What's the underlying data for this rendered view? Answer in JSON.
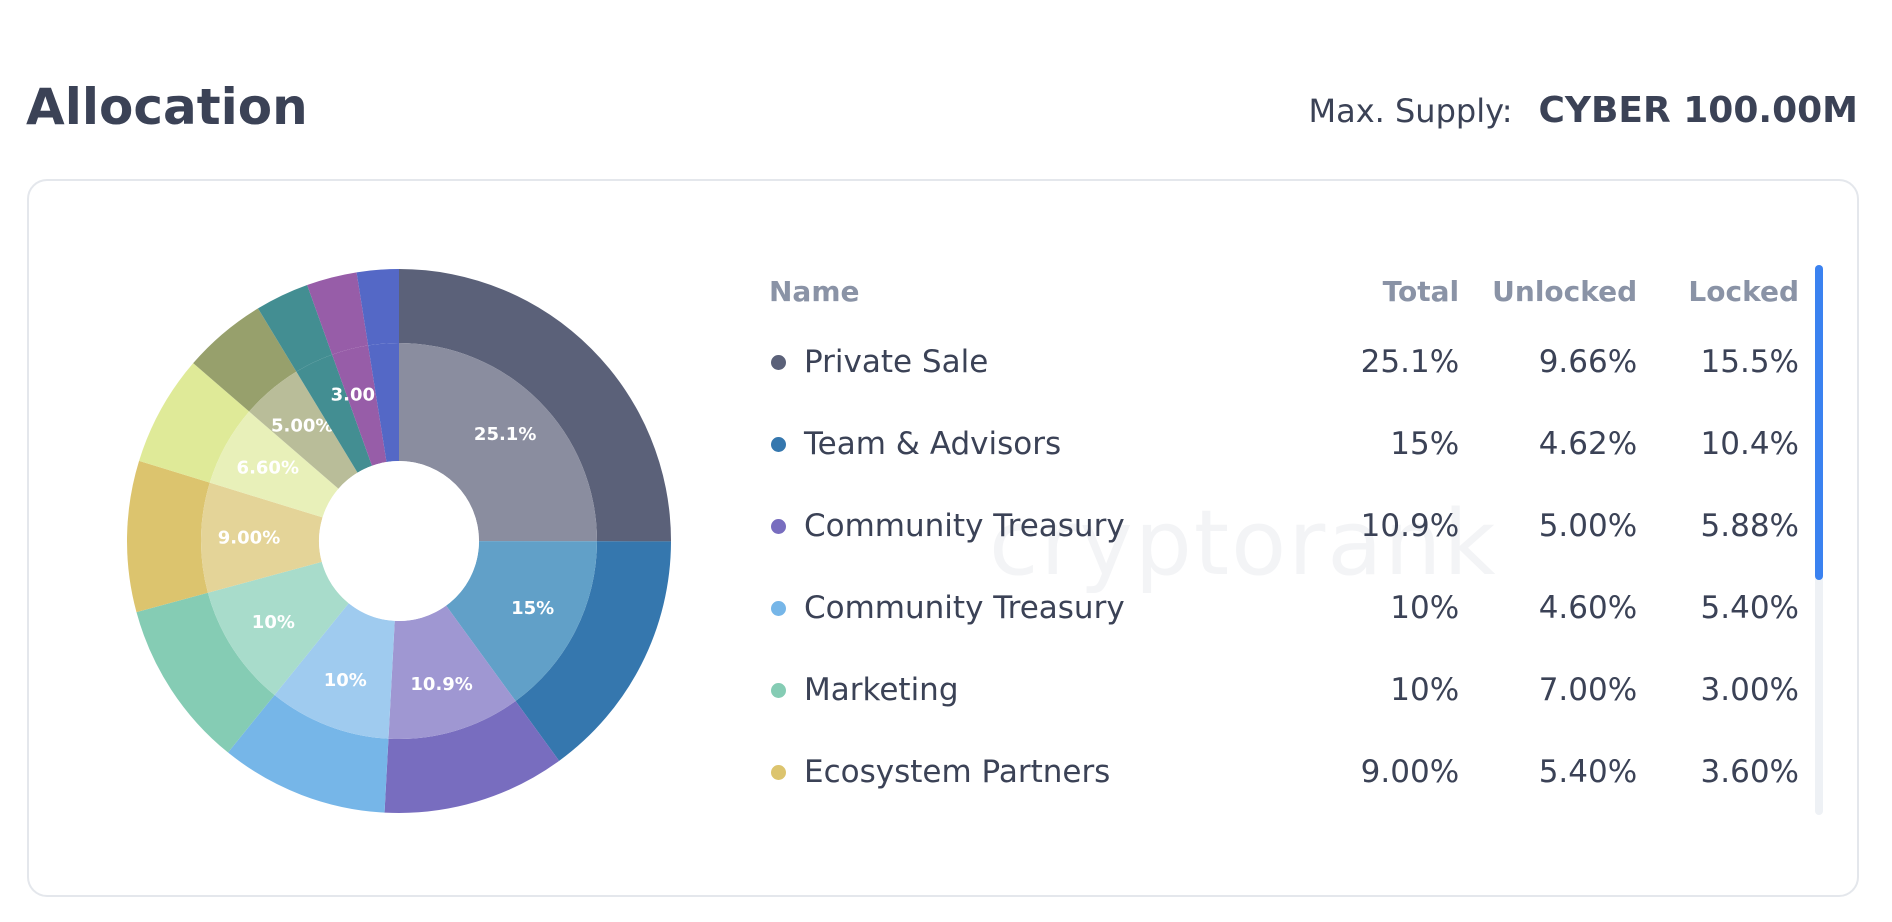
{
  "header": {
    "title": "Allocation",
    "supply_label": "Max. Supply:",
    "supply_value": "CYBER 100.00M"
  },
  "table": {
    "columns": [
      "Name",
      "Total",
      "Unlocked",
      "Locked"
    ],
    "rows": [
      {
        "name": "Private Sale",
        "total": "25.1%",
        "unlocked": "9.66%",
        "locked": "15.5%",
        "color": "#5b6179"
      },
      {
        "name": "Team & Advisors",
        "total": "15%",
        "unlocked": "4.62%",
        "locked": "10.4%",
        "color": "#3577ae"
      },
      {
        "name": "Community Treasury",
        "total": "10.9%",
        "unlocked": "5.00%",
        "locked": "5.88%",
        "color": "#786dbf"
      },
      {
        "name": "Community Treasury",
        "total": "10%",
        "unlocked": "4.60%",
        "locked": "5.40%",
        "color": "#76b6e8"
      },
      {
        "name": "Marketing",
        "total": "10%",
        "unlocked": "7.00%",
        "locked": "3.00%",
        "color": "#85ccb4"
      },
      {
        "name": "Ecosystem Partners",
        "total": "9.00%",
        "unlocked": "5.40%",
        "locked": "3.60%",
        "color": "#dcc46e"
      }
    ]
  },
  "chart_data": {
    "type": "pie",
    "variant": "donut",
    "slices": [
      {
        "label": "25.1%",
        "value": 25.1,
        "color": "#5b6179",
        "inner_color": "#8a8d9f"
      },
      {
        "label": "15%",
        "value": 15,
        "color": "#3577ae",
        "inner_color": "#61a0c8"
      },
      {
        "label": "10.9%",
        "value": 10.9,
        "color": "#786dbf",
        "inner_color": "#9f97d2"
      },
      {
        "label": "10%",
        "value": 10,
        "color": "#76b6e8",
        "inner_color": "#9fcbef"
      },
      {
        "label": "10%",
        "value": 10,
        "color": "#85ccb4",
        "inner_color": "#a8dccb"
      },
      {
        "label": "9.00%",
        "value": 9,
        "color": "#dcc46e",
        "inner_color": "#e4d498"
      },
      {
        "label": "6.60%",
        "value": 6.6,
        "color": "#dfea98",
        "inner_color": "#e8f0b9"
      },
      {
        "label": "5.00%",
        "value": 5,
        "color": "#97a06c",
        "inner_color": "#b9bd99"
      },
      {
        "label": "",
        "value": 3.2,
        "color": "#438e92",
        "inner_color": "#438e92"
      },
      {
        "label": "3.00%",
        "value": 3,
        "color": "#975da8",
        "inner_color": "#975da8"
      },
      {
        "label": "",
        "value": 2.5,
        "color": "#5468c6",
        "inner_color": "#5468c6"
      }
    ]
  },
  "watermark": "cryptorank"
}
